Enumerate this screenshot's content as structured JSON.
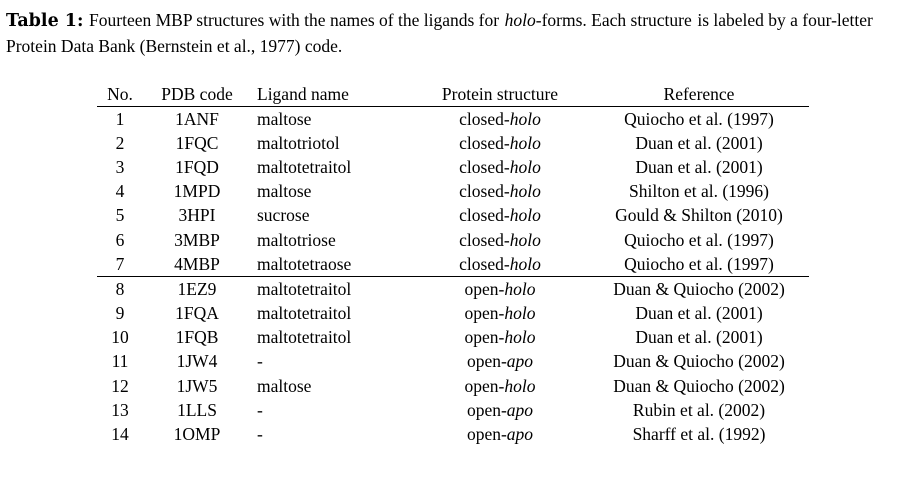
{
  "caption": {
    "label": "Table 1:",
    "line1_a": "Fourteen MBP structures with the names of the ligands for",
    "line1_italic": "holo",
    "line1_b": "-forms. Each structure",
    "line2": "is labeled by a four-letter Protein Data Bank (Bernstein et al., 1977) code."
  },
  "table": {
    "headers": [
      "No.",
      "PDB code",
      "Ligand name",
      "Protein structure",
      "Reference"
    ],
    "rows": [
      {
        "no": "1",
        "pdb": "1ANF",
        "ligand": "maltose",
        "state": "closed-",
        "form": "holo",
        "ref": "Quiocho et al. (1997)"
      },
      {
        "no": "2",
        "pdb": "1FQC",
        "ligand": "maltotriotol",
        "state": "closed-",
        "form": "holo",
        "ref": "Duan et al. (2001)"
      },
      {
        "no": "3",
        "pdb": "1FQD",
        "ligand": "maltotetraitol",
        "state": "closed-",
        "form": "holo",
        "ref": "Duan et al. (2001)"
      },
      {
        "no": "4",
        "pdb": "1MPD",
        "ligand": "maltose",
        "state": "closed-",
        "form": "holo",
        "ref": "Shilton et al. (1996)"
      },
      {
        "no": "5",
        "pdb": "3HPI",
        "ligand": "sucrose",
        "state": "closed-",
        "form": "holo",
        "ref": "Gould & Shilton (2010)"
      },
      {
        "no": "6",
        "pdb": "3MBP",
        "ligand": "maltotriose",
        "state": "closed-",
        "form": "holo",
        "ref": "Quiocho et al. (1997)"
      },
      {
        "no": "7",
        "pdb": "4MBP",
        "ligand": "maltotetraose",
        "state": "closed-",
        "form": "holo",
        "ref": "Quiocho et al. (1997)"
      },
      {
        "no": "8",
        "pdb": "1EZ9",
        "ligand": "maltotetraitol",
        "state": "open-",
        "form": "holo",
        "ref": "Duan & Quiocho (2002)"
      },
      {
        "no": "9",
        "pdb": "1FQA",
        "ligand": "maltotetraitol",
        "state": "open-",
        "form": "holo",
        "ref": "Duan et al. (2001)"
      },
      {
        "no": "10",
        "pdb": "1FQB",
        "ligand": "maltotetraitol",
        "state": "open-",
        "form": "holo",
        "ref": "Duan et al. (2001)"
      },
      {
        "no": "11",
        "pdb": "1JW4",
        "ligand": "-",
        "state": "open-",
        "form": "apo",
        "ref": "Duan & Quiocho (2002)"
      },
      {
        "no": "12",
        "pdb": "1JW5",
        "ligand": "maltose",
        "state": "open-",
        "form": "holo",
        "ref": "Duan & Quiocho (2002)"
      },
      {
        "no": "13",
        "pdb": "1LLS",
        "ligand": "-",
        "state": "open-",
        "form": "apo",
        "ref": "Rubin et al. (2002)"
      },
      {
        "no": "14",
        "pdb": "1OMP",
        "ligand": "-",
        "state": "open-",
        "form": "apo",
        "ref": "Sharff et al. (1992)"
      }
    ]
  }
}
